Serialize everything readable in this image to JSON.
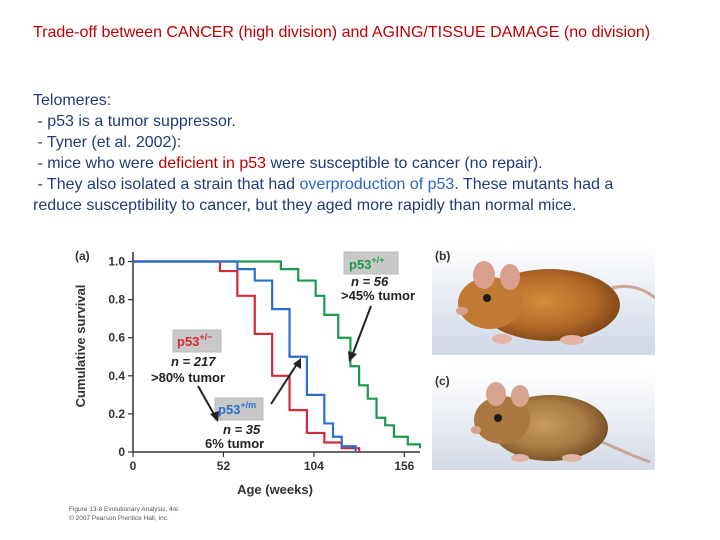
{
  "title": "Trade-off between CANCER (high division) and AGING/TISSUE DAMAGE (no division)",
  "body": {
    "heading": "Telomeres:",
    "l1": " - p53 is a tumor suppressor.",
    "l2": " - Tyner (et al. 2002):",
    "l3a": " - mice who were ",
    "l3b": "deficient in p53",
    "l3c": " were susceptible to cancer (no repair).",
    "l4a": " - They also isolated a strain that had ",
    "l4b": "overproduction of p53",
    "l4c": ". These mutants had a",
    "l5": "reduce susceptibility to cancer, but they aged more rapidly than normal mice."
  },
  "figure": {
    "panel_a": "(a)",
    "panel_b": "(b)",
    "panel_c": "(c)",
    "caption1": "Figure 13-8 Evolutionary Analysis, 4/e",
    "caption2": "© 2007 Pearson Prentice Hall, Inc.",
    "labels": {
      "wt_genotype": "p53",
      "wt_sup": "+/+",
      "wt_n": "n = 56",
      "wt_tumor": ">45% tumor",
      "het_genotype": "p53",
      "het_sup": "+/−",
      "het_n": "n = 217",
      "het_tumor": ">80% tumor",
      "mut_genotype": "p53",
      "mut_sup": "+/m",
      "mut_n": "n = 35",
      "mut_tumor": "6% tumor"
    },
    "colors": {
      "wt": "#1a9a4a",
      "het": "#d42a3a",
      "mut": "#2a6fd0"
    }
  },
  "chart_data": {
    "type": "line",
    "xlabel": "Age (weeks)",
    "ylabel": "Cumulative survival",
    "xticks": [
      "0",
      "52",
      "104",
      "156"
    ],
    "yticks": [
      "0",
      "0.2",
      "0.4",
      "0.6",
      "0.8",
      "1.0"
    ],
    "xlim": [
      0,
      165
    ],
    "ylim": [
      0,
      1.05
    ],
    "series": [
      {
        "name": "p53 +/+",
        "color": "#1a9a4a",
        "x": [
          0,
          70,
          85,
          95,
          105,
          110,
          118,
          125,
          130,
          135,
          140,
          145,
          150,
          158,
          165
        ],
        "y": [
          1.0,
          1.0,
          0.96,
          0.9,
          0.82,
          0.72,
          0.6,
          0.45,
          0.35,
          0.28,
          0.18,
          0.14,
          0.08,
          0.04,
          0.02
        ]
      },
      {
        "name": "p53 +/−",
        "color": "#d42a3a",
        "x": [
          0,
          40,
          50,
          60,
          70,
          80,
          90,
          100,
          110,
          120,
          130
        ],
        "y": [
          1.0,
          1.0,
          0.95,
          0.82,
          0.62,
          0.4,
          0.22,
          0.1,
          0.05,
          0.02,
          0.0
        ]
      },
      {
        "name": "p53 +/m",
        "color": "#2a6fd0",
        "x": [
          0,
          50,
          60,
          70,
          80,
          90,
          100,
          110,
          115,
          120,
          128
        ],
        "y": [
          1.0,
          1.0,
          0.96,
          0.9,
          0.75,
          0.5,
          0.3,
          0.15,
          0.08,
          0.03,
          0.0
        ]
      }
    ]
  }
}
